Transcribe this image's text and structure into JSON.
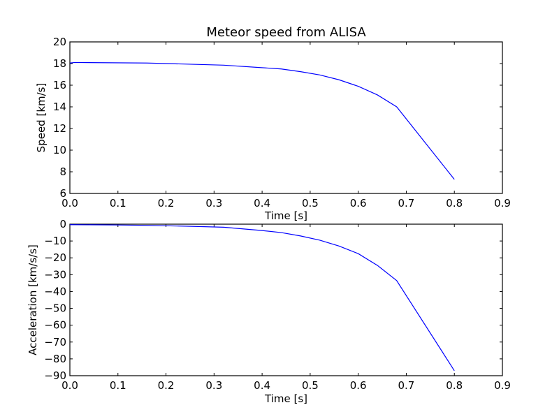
{
  "chart_data": [
    {
      "type": "line",
      "title": "Meteor speed from  ALISA",
      "xlabel": "Time [s]",
      "ylabel": "Speed [km/s]",
      "xlim": [
        0.0,
        0.9
      ],
      "ylim": [
        6,
        20
      ],
      "xticks": [
        "0.0",
        "0.1",
        "0.2",
        "0.3",
        "0.4",
        "0.5",
        "0.6",
        "0.7",
        "0.8",
        "0.9"
      ],
      "yticks": [
        "6",
        "8",
        "10",
        "12",
        "14",
        "16",
        "18",
        "20"
      ],
      "grid": false,
      "series": [
        {
          "color": "#0000ff",
          "x": [
            0.0,
            0.01,
            0.16,
            0.32,
            0.44,
            0.48,
            0.52,
            0.56,
            0.6,
            0.64,
            0.68,
            0.8
          ],
          "y": [
            18.05,
            18.1,
            18.05,
            17.85,
            17.5,
            17.25,
            16.95,
            16.5,
            15.9,
            15.1,
            14.0,
            7.3
          ]
        }
      ]
    },
    {
      "type": "line",
      "title": "",
      "xlabel": "Time [s]",
      "ylabel": "Acceleration [km/s/s]",
      "xlim": [
        0.0,
        0.9
      ],
      "ylim": [
        -90,
        0
      ],
      "xticks": [
        "0.0",
        "0.1",
        "0.2",
        "0.3",
        "0.4",
        "0.5",
        "0.6",
        "0.7",
        "0.8",
        "0.9"
      ],
      "yticks": [
        "0",
        "−10",
        "−20",
        "−30",
        "−40",
        "−50",
        "−60",
        "−70",
        "−80",
        "−90"
      ],
      "grid": false,
      "series": [
        {
          "color": "#0000ff",
          "x": [
            0.0,
            0.1,
            0.16,
            0.24,
            0.32,
            0.4,
            0.44,
            0.48,
            0.52,
            0.56,
            0.6,
            0.64,
            0.68,
            0.8
          ],
          "y": [
            -0.3,
            -0.5,
            -0.7,
            -1.2,
            -1.8,
            -3.8,
            -5.0,
            -7.0,
            -9.5,
            -13.0,
            -17.5,
            -24.5,
            -33.5,
            -87.0
          ]
        }
      ]
    }
  ]
}
